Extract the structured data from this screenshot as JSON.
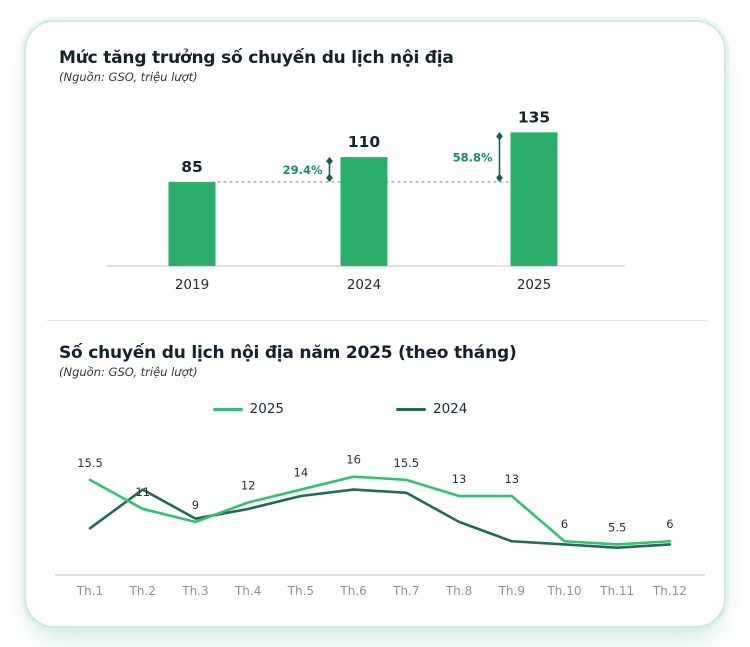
{
  "colors": {
    "bar_green": "#2ab06a",
    "line_2025": "#2ec571",
    "line_2024": "#226b56",
    "annotation_text": "#1a8a6f",
    "annotation_marker": "#17624f",
    "dashed_line": "#9ba1a6",
    "axis_line": "#d9d9d9",
    "tick_label": "#8d9399",
    "card_border": "#cfeada"
  },
  "chart_data": [
    {
      "type": "bar",
      "title": "Mức tăng trưởng số chuyến du lịch nội địa",
      "subtitle": "(Nguồn: GSO, triệu lượt)",
      "categories": [
        "2019",
        "2024",
        "2025"
      ],
      "values": [
        85,
        110,
        135
      ],
      "value_labels": [
        "85",
        "110",
        "135"
      ],
      "ylim": [
        0,
        150
      ],
      "grid": false,
      "dashed_reference_at": 85,
      "annotations": [
        {
          "label": "29.4%",
          "from": "2019",
          "to": "2024"
        },
        {
          "label": "58.8%",
          "from": "2019",
          "to": "2025"
        }
      ]
    },
    {
      "type": "line",
      "title": "Số chuyến du lịch nội địa năm 2025 (theo tháng)",
      "subtitle": "(Nguồn: GSO, triệu lượt)",
      "categories": [
        "Th.1",
        "Th.2",
        "Th.3",
        "Th.4",
        "Th.5",
        "Th.6",
        "Th.7",
        "Th.8",
        "Th.9",
        "Th.10",
        "Th.11",
        "Th.12"
      ],
      "legend_position": "top",
      "ylim": [
        0,
        18
      ],
      "grid": false,
      "series": [
        {
          "name": "2025",
          "values": [
            15.5,
            11,
            9,
            12,
            14,
            16,
            15.5,
            13,
            13,
            6,
            5.5,
            6
          ],
          "labels": [
            "15.5",
            "11",
            "9",
            "12",
            "14",
            "16",
            "15.5",
            "13",
            "13",
            "6",
            "5.5",
            "6"
          ]
        },
        {
          "name": "2024",
          "values": [
            8,
            14,
            9.5,
            11,
            13,
            14,
            13.5,
            9,
            6,
            5.5,
            5,
            5.5
          ],
          "labels": null
        }
      ]
    }
  ]
}
